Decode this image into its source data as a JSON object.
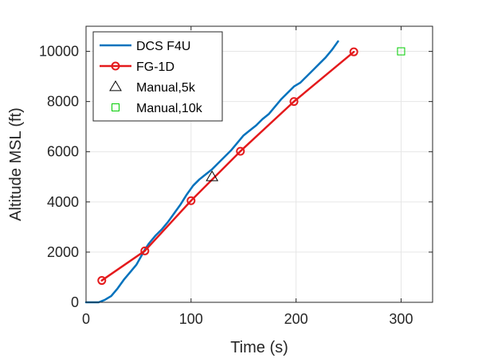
{
  "chart_data": {
    "type": "line",
    "xlabel": "Time (s)",
    "ylabel": "Altitude MSL (ft)",
    "xlim": [
      0,
      330
    ],
    "ylim": [
      0,
      11000
    ],
    "xticks": [
      0,
      100,
      200,
      300
    ],
    "yticks": [
      0,
      2000,
      4000,
      6000,
      8000,
      10000
    ],
    "xtick_labels": [
      "0",
      "100",
      "200",
      "300"
    ],
    "ytick_labels": [
      "0",
      "2000",
      "4000",
      "6000",
      "8000",
      "10000"
    ],
    "grid": true,
    "legend_position": "top-left",
    "series": [
      {
        "name": "DCS F4U",
        "style": "line",
        "color": "#0072BD",
        "x": [
          0,
          12,
          18,
          24,
          30,
          36,
          42,
          48,
          52,
          56,
          60,
          66,
          72,
          78,
          84,
          90,
          96,
          102,
          108,
          114,
          120,
          126,
          132,
          138,
          144,
          150,
          156,
          162,
          168,
          174,
          180,
          186,
          192,
          198,
          204,
          210,
          216,
          222,
          228,
          234,
          240
        ],
        "y": [
          0,
          0,
          100,
          250,
          550,
          900,
          1200,
          1500,
          1800,
          2100,
          2350,
          2650,
          2900,
          3200,
          3550,
          3900,
          4300,
          4650,
          4900,
          5100,
          5300,
          5550,
          5800,
          6050,
          6350,
          6650,
          6850,
          7050,
          7300,
          7500,
          7800,
          8100,
          8350,
          8600,
          8750,
          9000,
          9250,
          9500,
          9750,
          10050,
          10400
        ]
      },
      {
        "name": "FG-1D",
        "style": "line-marker",
        "marker": "circle",
        "color": "#E41A1C",
        "x": [
          15,
          56,
          100,
          147,
          198,
          255
        ],
        "y": [
          870,
          2050,
          4050,
          6020,
          8000,
          9980
        ]
      },
      {
        "name": "Manual,5k",
        "style": "marker",
        "marker": "triangle",
        "color": "#000000",
        "x": [
          120
        ],
        "y": [
          5000
        ]
      },
      {
        "name": "Manual,10k",
        "style": "marker",
        "marker": "square",
        "color": "#00CC00",
        "x": [
          300
        ],
        "y": [
          10000
        ]
      }
    ]
  }
}
